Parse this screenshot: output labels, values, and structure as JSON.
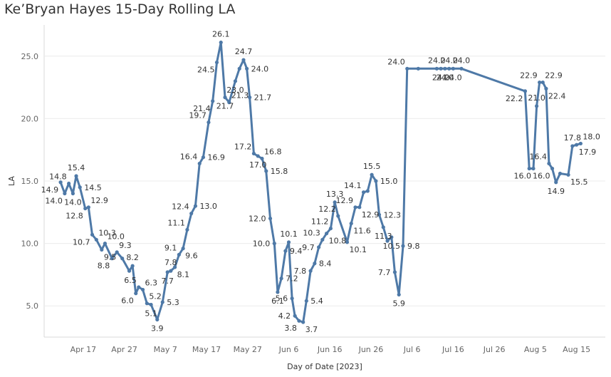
{
  "title": "Ke’Bryan Hayes 15-Day Rolling LA",
  "chart_data": {
    "type": "line",
    "title": "Ke’Bryan Hayes 15-Day Rolling LA",
    "xlabel": "Day of Date [2023]",
    "ylabel": "LA",
    "ylim": [
      2.5,
      27.5
    ],
    "yticks": [
      5.0,
      10.0,
      15.0,
      20.0,
      25.0
    ],
    "ytick_labels": [
      "5.0",
      "10.0",
      "15.0",
      "20.0",
      "25.0"
    ],
    "xticks": [
      {
        "day": 17,
        "label": "Apr 17"
      },
      {
        "day": 27,
        "label": "Apr 27"
      },
      {
        "day": 37,
        "label": "May 7"
      },
      {
        "day": 47,
        "label": "May 17"
      },
      {
        "day": 57,
        "label": "May 27"
      },
      {
        "day": 67,
        "label": "Jun 6"
      },
      {
        "day": 77,
        "label": "Jun 16"
      },
      {
        "day": 87,
        "label": "Jun 26"
      },
      {
        "day": 97,
        "label": "Jul 6"
      },
      {
        "day": 107,
        "label": "Jul 16"
      },
      {
        "day": 117,
        "label": "Jul 26"
      },
      {
        "day": 127,
        "label": "Aug 5"
      },
      {
        "day": 137,
        "label": "Aug 15"
      }
    ],
    "xlim": [
      7.5,
      144
    ],
    "x_note": "day index where Apr 1 = 1",
    "color": "#4e79a7",
    "series": [
      {
        "name": "15-Day Rolling LA",
        "points": [
          {
            "x": 11.5,
            "y": 14.9,
            "label": "14.9",
            "pos": "below-left"
          },
          {
            "x": 12.5,
            "y": 14.0,
            "label": "14.0",
            "pos": "below-left"
          },
          {
            "x": 13.5,
            "y": 14.8,
            "label": "14.8",
            "pos": "above-left"
          },
          {
            "x": 14.5,
            "y": 14.0,
            "label": "14.0",
            "pos": "below"
          },
          {
            "x": 15.3,
            "y": 15.4,
            "label": "15.4",
            "pos": "above"
          },
          {
            "x": 16.2,
            "y": 14.5,
            "label": "14.5",
            "pos": "right"
          },
          {
            "x": 17.5,
            "y": 12.8,
            "label": "12.8",
            "pos": "below-left"
          },
          {
            "x": 18.3,
            "y": 12.9,
            "label": "12.9",
            "pos": "above-right"
          },
          {
            "x": 19.2,
            "y": 10.7,
            "label": "10.7",
            "pos": "below-left"
          },
          {
            "x": 20.2,
            "y": 10.3,
            "label": "10.3",
            "pos": "above-right"
          },
          {
            "x": 21.5,
            "y": 9.5,
            "label": "9.5",
            "pos": "below-right"
          },
          {
            "x": 22.3,
            "y": 10.0,
            "label": "10.0",
            "pos": "above-right"
          },
          {
            "x": 24.0,
            "y": 8.8,
            "label": "8.8",
            "pos": "below-left"
          },
          {
            "x": 25.2,
            "y": 9.3,
            "label": "9.3",
            "pos": "above-right"
          },
          {
            "x": 26.5,
            "y": 8.8,
            "label": "",
            "pos": "none"
          },
          {
            "x": 28.2,
            "y": 7.8,
            "label": "",
            "pos": "none"
          },
          {
            "x": 29.0,
            "y": 8.2,
            "label": "8.2",
            "pos": "above"
          },
          {
            "x": 29.8,
            "y": 6.0,
            "label": "6.0",
            "pos": "below-left"
          },
          {
            "x": 30.5,
            "y": 6.5,
            "label": "6.5",
            "pos": "above-left"
          },
          {
            "x": 31.5,
            "y": 6.3,
            "label": "6.3",
            "pos": "above-right"
          },
          {
            "x": 32.5,
            "y": 5.2,
            "label": "5.2",
            "pos": "above-right"
          },
          {
            "x": 33.5,
            "y": 5.1,
            "label": "5.1",
            "pos": "below"
          },
          {
            "x": 35.0,
            "y": 3.9,
            "label": "3.9",
            "pos": "below"
          },
          {
            "x": 36.3,
            "y": 5.3,
            "label": "5.3",
            "pos": "right"
          },
          {
            "x": 37.5,
            "y": 7.7,
            "label": "7.7",
            "pos": "below"
          },
          {
            "x": 38.3,
            "y": 7.8,
            "label": "7.8",
            "pos": "above"
          },
          {
            "x": 39.3,
            "y": 8.1,
            "label": "8.1",
            "pos": "below-right"
          },
          {
            "x": 40.3,
            "y": 9.1,
            "label": "9.1",
            "pos": "above-left"
          },
          {
            "x": 41.3,
            "y": 9.6,
            "label": "9.6",
            "pos": "below-right"
          },
          {
            "x": 42.3,
            "y": 11.1,
            "label": "11.1",
            "pos": "above-left"
          },
          {
            "x": 43.3,
            "y": 12.4,
            "label": "12.4",
            "pos": "above-left"
          },
          {
            "x": 44.3,
            "y": 13.0,
            "label": "13.0",
            "pos": "right"
          },
          {
            "x": 45.3,
            "y": 16.4,
            "label": "16.4",
            "pos": "above-left"
          },
          {
            "x": 46.2,
            "y": 16.9,
            "label": "16.9",
            "pos": "right"
          },
          {
            "x": 47.5,
            "y": 19.7,
            "label": "19.7",
            "pos": "above-left"
          },
          {
            "x": 48.5,
            "y": 21.4,
            "label": "21.4",
            "pos": "below-left"
          },
          {
            "x": 49.5,
            "y": 24.5,
            "label": "24.5",
            "pos": "below-left"
          },
          {
            "x": 50.5,
            "y": 26.1,
            "label": "26.1",
            "pos": "above"
          },
          {
            "x": 51.5,
            "y": 21.7,
            "label": "21.7",
            "pos": "below"
          },
          {
            "x": 52.5,
            "y": 21.3,
            "label": "21.3",
            "pos": "above-right"
          },
          {
            "x": 54.0,
            "y": 23.0,
            "label": "23.0",
            "pos": "below"
          },
          {
            "x": 55.0,
            "y": 24.0,
            "label": "",
            "pos": "none"
          },
          {
            "x": 56.0,
            "y": 24.7,
            "label": "24.7",
            "pos": "above"
          },
          {
            "x": 56.8,
            "y": 24.0,
            "label": "24.0",
            "pos": "right"
          },
          {
            "x": 57.5,
            "y": 21.7,
            "label": "21.7",
            "pos": "right"
          },
          {
            "x": 58.5,
            "y": 17.2,
            "label": "17.2",
            "pos": "above-left"
          },
          {
            "x": 59.5,
            "y": 17.0,
            "label": "17.0",
            "pos": "below"
          },
          {
            "x": 60.5,
            "y": 16.8,
            "label": "16.8",
            "pos": "above-right"
          },
          {
            "x": 61.5,
            "y": 15.8,
            "label": "15.8",
            "pos": "right"
          },
          {
            "x": 62.5,
            "y": 12.0,
            "label": "12.0",
            "pos": "left"
          },
          {
            "x": 63.5,
            "y": 10.0,
            "label": "10.0",
            "pos": "left"
          },
          {
            "x": 64.3,
            "y": 6.1,
            "label": "6.1",
            "pos": "below"
          },
          {
            "x": 65.2,
            "y": 7.2,
            "label": "7.2",
            "pos": "right"
          },
          {
            "x": 66.2,
            "y": 9.4,
            "label": "9.4",
            "pos": "right"
          },
          {
            "x": 67.0,
            "y": 10.1,
            "label": "10.1",
            "pos": "above"
          },
          {
            "x": 67.8,
            "y": 5.6,
            "label": "5.6",
            "pos": "left"
          },
          {
            "x": 68.5,
            "y": 4.2,
            "label": "4.2",
            "pos": "left"
          },
          {
            "x": 69.5,
            "y": 3.8,
            "label": "3.8",
            "pos": "below-left"
          },
          {
            "x": 70.5,
            "y": 3.7,
            "label": "3.7",
            "pos": "below-right"
          },
          {
            "x": 71.3,
            "y": 5.4,
            "label": "5.4",
            "pos": "right"
          },
          {
            "x": 72.3,
            "y": 7.8,
            "label": "7.8",
            "pos": "left"
          },
          {
            "x": 73.3,
            "y": 8.4,
            "label": "8.4",
            "pos": "right"
          },
          {
            "x": 74.3,
            "y": 9.7,
            "label": "9.7",
            "pos": "left"
          },
          {
            "x": 75.2,
            "y": 10.3,
            "label": "10.3",
            "pos": "above-left"
          },
          {
            "x": 76.2,
            "y": 10.8,
            "label": "10.8",
            "pos": "below-right"
          },
          {
            "x": 77.2,
            "y": 11.2,
            "label": "11.2",
            "pos": "above-left"
          },
          {
            "x": 78.2,
            "y": 13.3,
            "label": "13.3",
            "pos": "above"
          },
          {
            "x": 79.0,
            "y": 12.2,
            "label": "12.2",
            "pos": "above-left"
          },
          {
            "x": 81.2,
            "y": 10.1,
            "label": "10.1",
            "pos": "below-right"
          },
          {
            "x": 82.2,
            "y": 11.6,
            "label": "11.6",
            "pos": "below-right"
          },
          {
            "x": 83.2,
            "y": 12.9,
            "label": "12.9",
            "pos": "above-left"
          },
          {
            "x": 84.2,
            "y": 12.9,
            "label": "12.9",
            "pos": "below-right"
          },
          {
            "x": 85.2,
            "y": 14.1,
            "label": "14.1",
            "pos": "above-left"
          },
          {
            "x": 86.2,
            "y": 14.2,
            "label": "",
            "pos": "none"
          },
          {
            "x": 87.2,
            "y": 15.5,
            "label": "15.5",
            "pos": "above"
          },
          {
            "x": 88.2,
            "y": 15.0,
            "label": "15.0",
            "pos": "right"
          },
          {
            "x": 89.0,
            "y": 12.3,
            "label": "12.3",
            "pos": "right"
          },
          {
            "x": 90.0,
            "y": 11.3,
            "label": "11.3",
            "pos": "below"
          },
          {
            "x": 91.0,
            "y": 10.2,
            "label": "",
            "pos": "none"
          },
          {
            "x": 92.0,
            "y": 10.5,
            "label": "10.5",
            "pos": "below"
          },
          {
            "x": 92.8,
            "y": 7.7,
            "label": "7.7",
            "pos": "left"
          },
          {
            "x": 93.8,
            "y": 5.9,
            "label": "5.9",
            "pos": "below"
          },
          {
            "x": 94.8,
            "y": 9.8,
            "label": "9.8",
            "pos": "right"
          },
          {
            "x": 95.8,
            "y": 24.0,
            "label": "24.0",
            "pos": "above-left"
          },
          {
            "x": 98.5,
            "y": 24.0,
            "label": "",
            "pos": "none"
          },
          {
            "x": 103.0,
            "y": 24.0,
            "label": "24.0",
            "pos": "above"
          },
          {
            "x": 104.0,
            "y": 24.0,
            "label": "24.0",
            "pos": "below"
          },
          {
            "x": 105.0,
            "y": 24.0,
            "label": "24.0",
            "pos": "below"
          },
          {
            "x": 106.0,
            "y": 24.0,
            "label": "24.0",
            "pos": "above"
          },
          {
            "x": 107.0,
            "y": 24.0,
            "label": "24.0",
            "pos": "below"
          },
          {
            "x": 109.0,
            "y": 24.0,
            "label": "24.0",
            "pos": "above"
          },
          {
            "x": 124.5,
            "y": 22.2,
            "label": "22.2",
            "pos": "below-left"
          },
          {
            "x": 125.5,
            "y": 16.0,
            "label": "",
            "pos": "none"
          },
          {
            "x": 126.5,
            "y": 16.0,
            "label": "16.0",
            "pos": "below-left"
          },
          {
            "x": 127.3,
            "y": 21.0,
            "label": "21.0",
            "pos": "above"
          },
          {
            "x": 128.0,
            "y": 22.9,
            "label": "22.9",
            "pos": "above-left"
          },
          {
            "x": 128.8,
            "y": 22.9,
            "label": "22.9",
            "pos": "above-right"
          },
          {
            "x": 129.6,
            "y": 22.4,
            "label": "22.4",
            "pos": "below-right"
          },
          {
            "x": 130.3,
            "y": 16.4,
            "label": "16.4",
            "pos": "above-left"
          },
          {
            "x": 131.1,
            "y": 16.0,
            "label": "16.0",
            "pos": "below-left"
          },
          {
            "x": 132.0,
            "y": 14.9,
            "label": "14.9",
            "pos": "below"
          },
          {
            "x": 133.0,
            "y": 15.6,
            "label": "",
            "pos": "none"
          },
          {
            "x": 135.0,
            "y": 15.5,
            "label": "15.5",
            "pos": "below-right"
          },
          {
            "x": 136.0,
            "y": 17.8,
            "label": "17.8",
            "pos": "above"
          },
          {
            "x": 137.0,
            "y": 17.9,
            "label": "17.9",
            "pos": "below-right"
          },
          {
            "x": 138.0,
            "y": 18.0,
            "label": "18.0",
            "pos": "above-right"
          }
        ]
      }
    ]
  }
}
